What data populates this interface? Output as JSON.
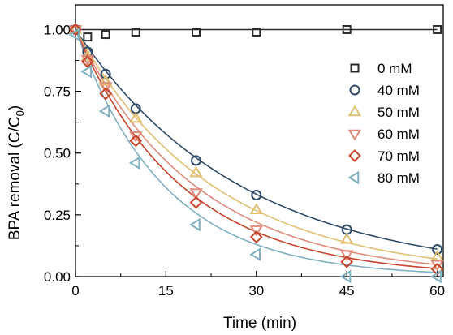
{
  "chart_data": {
    "type": "scatter",
    "xlabel": "Time (min)",
    "ylabel": "BPA removal (C/C",
    "ylabel_sub": "0",
    "ylabel_close": ")",
    "xlim": [
      0,
      61
    ],
    "ylim": [
      0,
      1.1
    ],
    "xticks": [
      0,
      15,
      30,
      45,
      60
    ],
    "xtick_labels": [
      "0",
      "15",
      "30",
      "45",
      "60"
    ],
    "yticks": [
      0,
      0.25,
      0.5,
      0.75,
      1.0
    ],
    "ytick_labels": [
      "0.00",
      "0.25",
      "0.50",
      "0.75",
      "1.00"
    ],
    "x_minor_ticks": [
      7.5,
      22.5,
      37.5,
      52.5
    ],
    "y_minor_ticks": [
      0.125,
      0.375,
      0.625,
      0.875
    ],
    "legend_position": "right",
    "grid": false,
    "series": [
      {
        "name": "0 mM",
        "marker": "square",
        "color": "#2b2b2b",
        "fit_k": 0,
        "x": [
          0,
          2,
          5,
          10,
          20,
          30,
          45,
          60
        ],
        "y": [
          1.0,
          0.97,
          0.98,
          0.99,
          0.99,
          0.99,
          1.0,
          1.0
        ]
      },
      {
        "name": "40 mM",
        "marker": "circle",
        "color": "#2f4b6a",
        "fit_k": 0.0366,
        "x": [
          0,
          2,
          5,
          10,
          20,
          30,
          45,
          60
        ],
        "y": [
          1.0,
          0.91,
          0.82,
          0.68,
          0.47,
          0.33,
          0.19,
          0.11
        ]
      },
      {
        "name": "50 mM",
        "marker": "triangle-up",
        "color": "#e3bf72",
        "fit_k": 0.044,
        "x": [
          0,
          2,
          5,
          10,
          20,
          30,
          45,
          60
        ],
        "y": [
          1.0,
          0.89,
          0.79,
          0.64,
          0.42,
          0.27,
          0.15,
          0.08
        ]
      },
      {
        "name": "60 mM",
        "marker": "triangle-down",
        "color": "#e18a7a",
        "fit_k": 0.0505,
        "x": [
          0,
          2,
          5,
          10,
          20,
          30,
          45,
          60
        ],
        "y": [
          1.0,
          0.88,
          0.77,
          0.57,
          0.34,
          0.19,
          0.09,
          0.05
        ]
      },
      {
        "name": "70 mM",
        "marker": "diamond",
        "color": "#c8442a",
        "fit_k": 0.057,
        "x": [
          0,
          2,
          5,
          10,
          20,
          30,
          45,
          60
        ],
        "y": [
          1.0,
          0.87,
          0.74,
          0.55,
          0.3,
          0.16,
          0.06,
          0.03
        ]
      },
      {
        "name": "80 mM",
        "marker": "triangle-left",
        "color": "#7fb0c2",
        "fit_k": 0.068,
        "x": [
          0,
          2,
          5,
          10,
          20,
          30,
          45,
          60
        ],
        "y": [
          0.98,
          0.83,
          0.67,
          0.46,
          0.21,
          0.09,
          0.0,
          0.0
        ]
      }
    ]
  }
}
